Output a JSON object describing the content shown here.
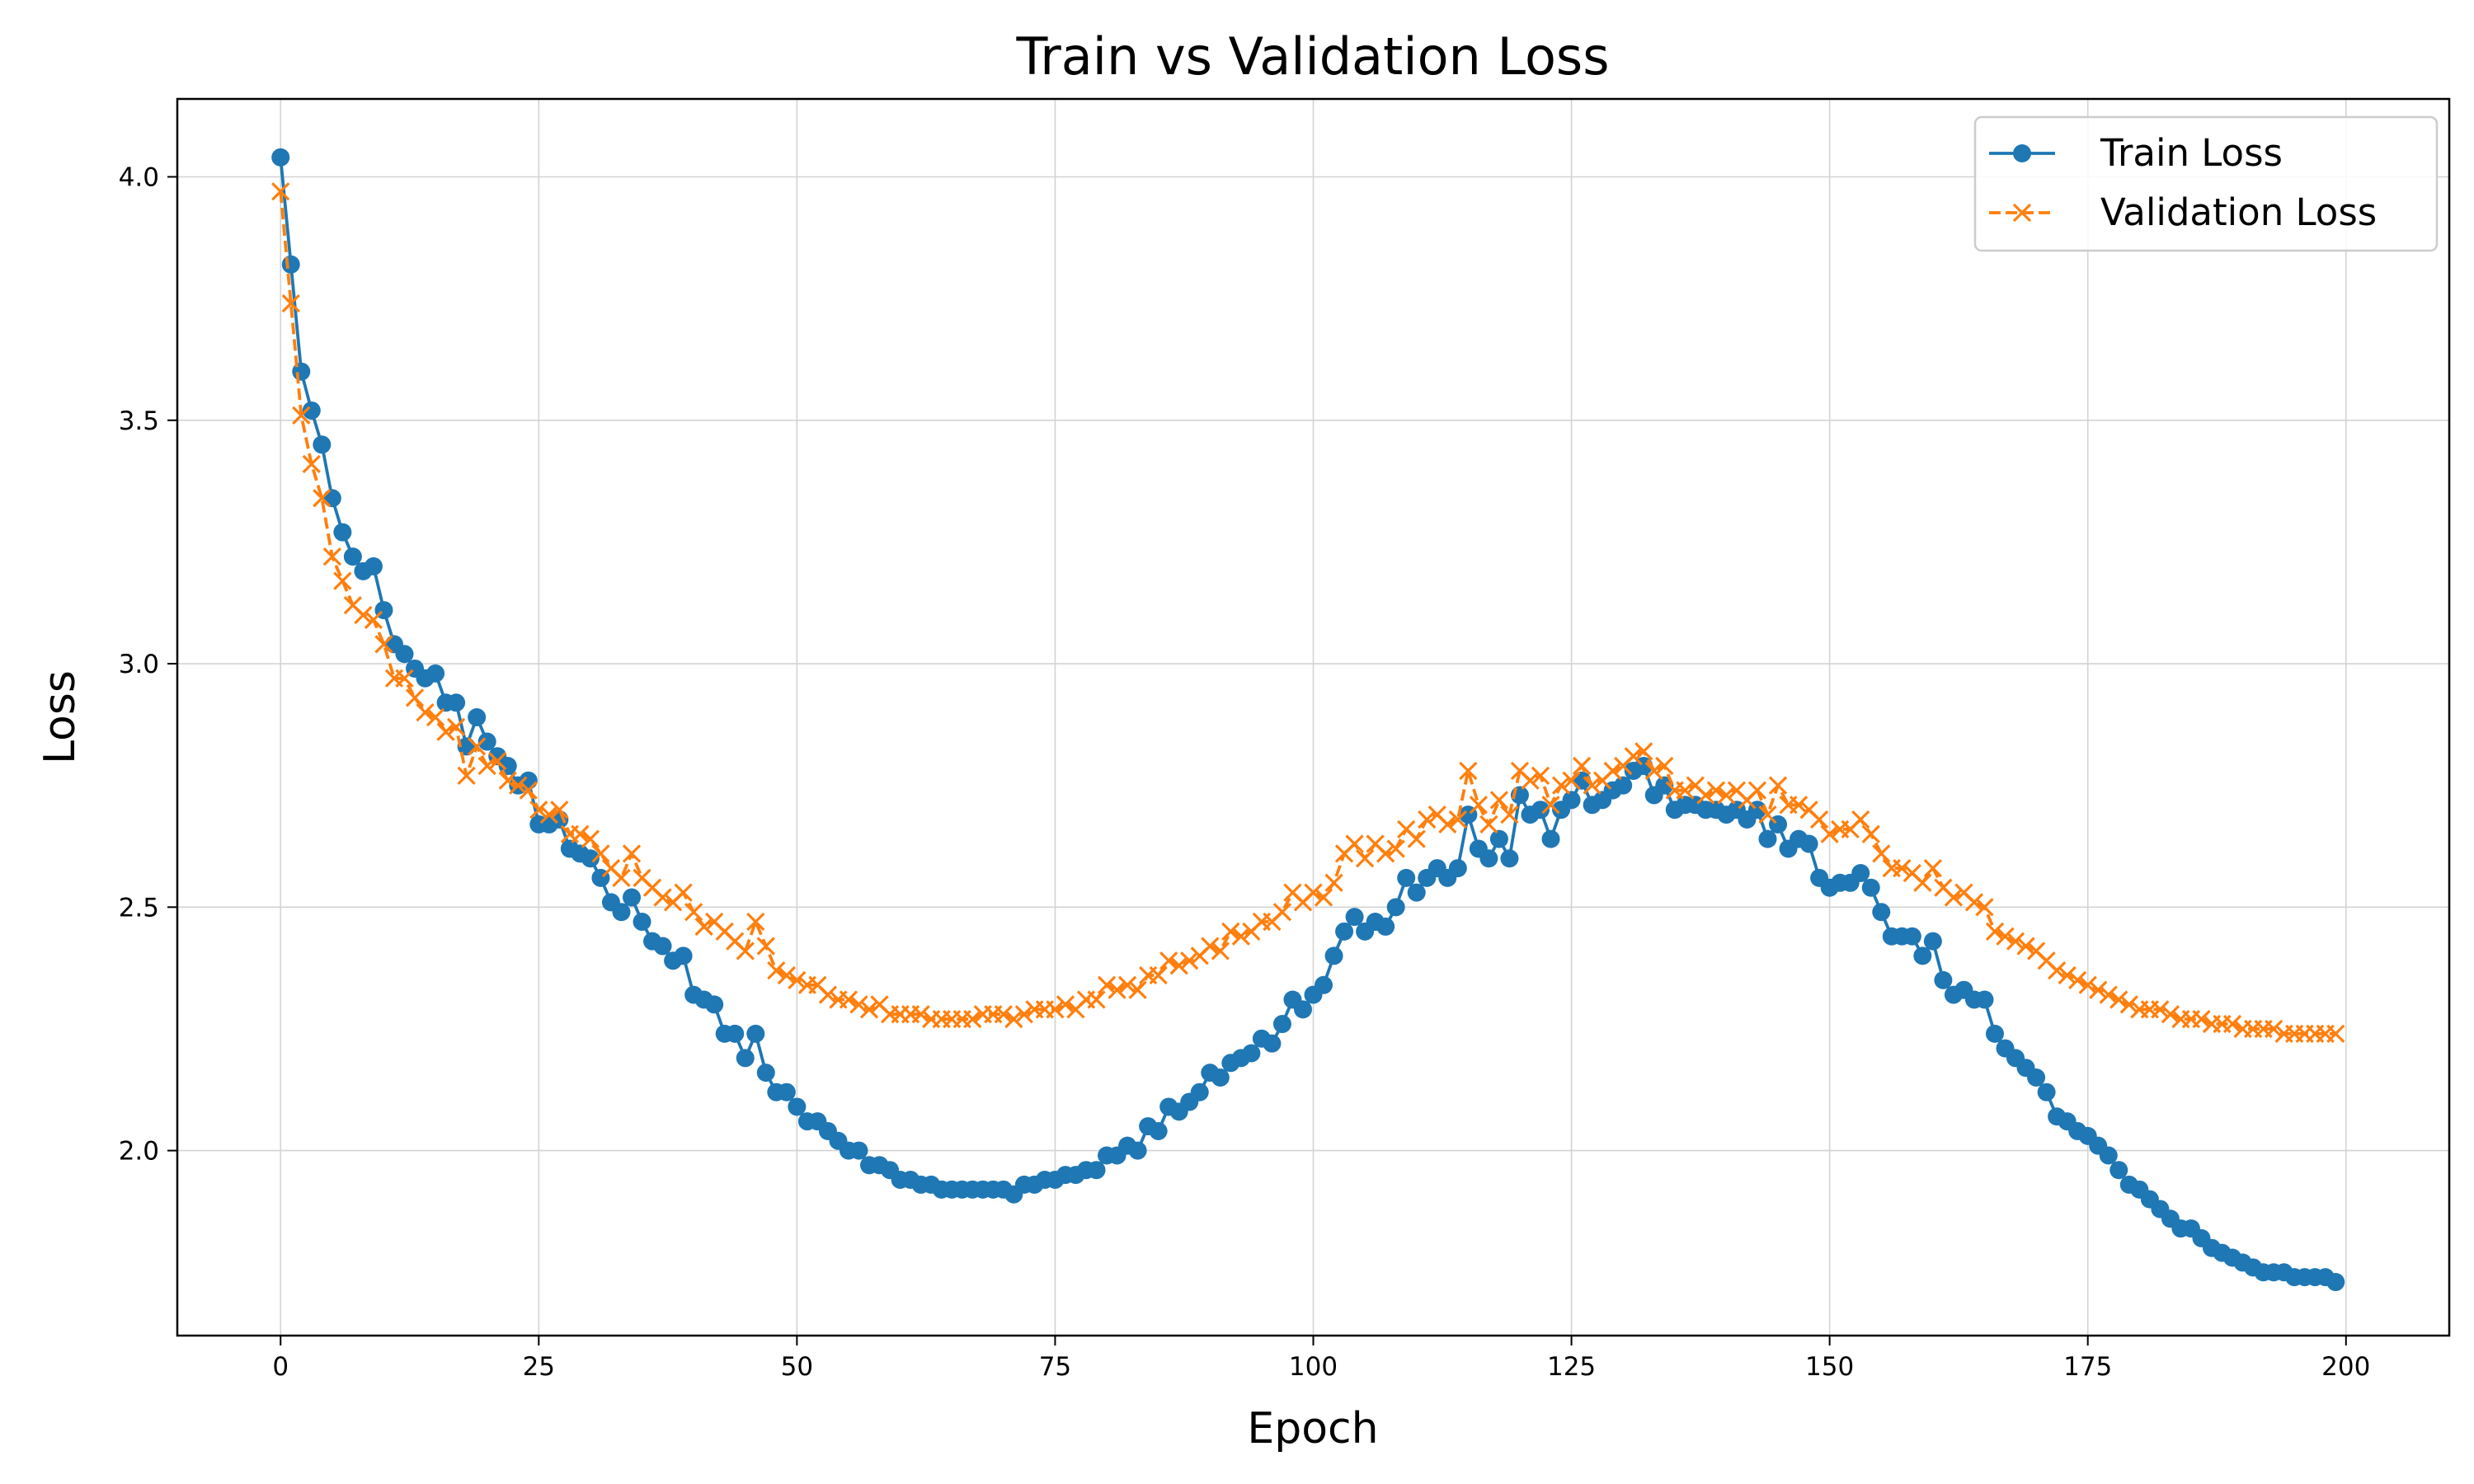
{
  "colors": {
    "train": "#1f77b4",
    "validation": "#ff7f0e",
    "grid": "#d3d3d3"
  },
  "chart_data": {
    "type": "line",
    "title": "Train vs Validation Loss",
    "xlabel": "Epoch",
    "ylabel": "Loss",
    "xlim": [
      -10,
      210
    ],
    "ylim": [
      1.62,
      4.16
    ],
    "xticks": [
      0,
      25,
      50,
      75,
      100,
      125,
      150,
      175,
      200
    ],
    "yticks": [
      2.0,
      2.5,
      3.0,
      3.5,
      4.0
    ],
    "ytick_labels": [
      "2.0",
      "2.5",
      "3.0",
      "3.5",
      "4.0"
    ],
    "grid": true,
    "legend_position": "top-right",
    "series": [
      {
        "name": "Train Loss",
        "style": "solid",
        "marker": "circle",
        "color": "#1f77b4",
        "x": [
          0,
          1,
          2,
          3,
          4,
          5,
          6,
          7,
          8,
          9,
          10,
          11,
          12,
          13,
          14,
          15,
          16,
          17,
          18,
          19,
          20,
          21,
          22,
          23,
          24,
          25,
          26,
          27,
          28,
          29,
          30,
          31,
          32,
          33,
          34,
          35,
          36,
          37,
          38,
          39,
          40,
          41,
          42,
          43,
          44,
          45,
          46,
          47,
          48,
          49,
          50,
          51,
          52,
          53,
          54,
          55,
          56,
          57,
          58,
          59,
          60,
          61,
          62,
          63,
          64,
          65,
          66,
          67,
          68,
          69,
          70,
          71,
          72,
          73,
          74,
          75,
          76,
          77,
          78,
          79,
          80,
          81,
          82,
          83,
          84,
          85,
          86,
          87,
          88,
          89,
          90,
          91,
          92,
          93,
          94,
          95,
          96,
          97,
          98,
          99,
          100,
          101,
          102,
          103,
          104,
          105,
          106,
          107,
          108,
          109,
          110,
          111,
          112,
          113,
          114,
          115,
          116,
          117,
          118,
          119,
          120,
          121,
          122,
          123,
          124,
          125,
          126,
          127,
          128,
          129,
          130,
          131,
          132,
          133,
          134,
          135,
          136,
          137,
          138,
          139,
          140,
          141,
          142,
          143,
          144,
          145,
          146,
          147,
          148,
          149,
          150,
          151,
          152,
          153,
          154,
          155,
          156,
          157,
          158,
          159,
          160,
          161,
          162,
          163,
          164,
          165,
          166,
          167,
          168,
          169,
          170,
          171,
          172,
          173,
          174,
          175,
          176,
          177,
          178,
          179,
          180,
          181,
          182,
          183,
          184,
          185,
          186,
          187,
          188,
          189,
          190,
          191,
          192,
          193,
          194,
          195,
          196,
          197,
          198,
          199
        ],
        "y": [
          4.04,
          3.82,
          3.6,
          3.52,
          3.45,
          3.34,
          3.27,
          3.22,
          3.19,
          3.2,
          3.11,
          3.04,
          3.02,
          2.99,
          2.97,
          2.98,
          2.92,
          2.92,
          2.83,
          2.89,
          2.84,
          2.81,
          2.79,
          2.75,
          2.76,
          2.67,
          2.67,
          2.68,
          2.62,
          2.61,
          2.6,
          2.56,
          2.51,
          2.49,
          2.52,
          2.47,
          2.43,
          2.42,
          2.39,
          2.4,
          2.32,
          2.31,
          2.3,
          2.24,
          2.24,
          2.19,
          2.24,
          2.16,
          2.12,
          2.12,
          2.09,
          2.06,
          2.06,
          2.04,
          2.02,
          2.0,
          2.0,
          1.97,
          1.97,
          1.96,
          1.94,
          1.94,
          1.93,
          1.93,
          1.92,
          1.92,
          1.92,
          1.92,
          1.92,
          1.92,
          1.92,
          1.91,
          1.93,
          1.93,
          1.94,
          1.94,
          1.95,
          1.95,
          1.96,
          1.96,
          1.99,
          1.99,
          2.01,
          2.0,
          2.05,
          2.04,
          2.09,
          2.08,
          2.1,
          2.12,
          2.16,
          2.15,
          2.18,
          2.19,
          2.2,
          2.23,
          2.22,
          2.26,
          2.31,
          2.29,
          2.32,
          2.34,
          2.4,
          2.45,
          2.48,
          2.45,
          2.47,
          2.46,
          2.5,
          2.56,
          2.53,
          2.56,
          2.58,
          2.56,
          2.58,
          2.69,
          2.62,
          2.6,
          2.64,
          2.6,
          2.73,
          2.69,
          2.7,
          2.64,
          2.7,
          2.72,
          2.76,
          2.71,
          2.72,
          2.74,
          2.75,
          2.78,
          2.79,
          2.73,
          2.75,
          2.7,
          2.71,
          2.71,
          2.7,
          2.7,
          2.69,
          2.7,
          2.68,
          2.7,
          2.64,
          2.67,
          2.62,
          2.64,
          2.63,
          2.56,
          2.54,
          2.55,
          2.55,
          2.57,
          2.54,
          2.49,
          2.44,
          2.44,
          2.44,
          2.4,
          2.43,
          2.35,
          2.32,
          2.33,
          2.31,
          2.31,
          2.24,
          2.21,
          2.19,
          2.17,
          2.15,
          2.12,
          2.07,
          2.06,
          2.04,
          2.03,
          2.01,
          1.99,
          1.96,
          1.93,
          1.92,
          1.9,
          1.88,
          1.86,
          1.84,
          1.84,
          1.82,
          1.8,
          1.79,
          1.78,
          1.77,
          1.76,
          1.75,
          1.75,
          1.75,
          1.74,
          1.74,
          1.74,
          1.74,
          1.73
        ]
      },
      {
        "name": "Validation Loss",
        "style": "dashed",
        "marker": "x",
        "color": "#ff7f0e",
        "x": [
          0,
          1,
          2,
          3,
          4,
          5,
          6,
          7,
          8,
          9,
          10,
          11,
          12,
          13,
          14,
          15,
          16,
          17,
          18,
          19,
          20,
          21,
          22,
          23,
          24,
          25,
          26,
          27,
          28,
          29,
          30,
          31,
          32,
          33,
          34,
          35,
          36,
          37,
          38,
          39,
          40,
          41,
          42,
          43,
          44,
          45,
          46,
          47,
          48,
          49,
          50,
          51,
          52,
          53,
          54,
          55,
          56,
          57,
          58,
          59,
          60,
          61,
          62,
          63,
          64,
          65,
          66,
          67,
          68,
          69,
          70,
          71,
          72,
          73,
          74,
          75,
          76,
          77,
          78,
          79,
          80,
          81,
          82,
          83,
          84,
          85,
          86,
          87,
          88,
          89,
          90,
          91,
          92,
          93,
          94,
          95,
          96,
          97,
          98,
          99,
          100,
          101,
          102,
          103,
          104,
          105,
          106,
          107,
          108,
          109,
          110,
          111,
          112,
          113,
          114,
          115,
          116,
          117,
          118,
          119,
          120,
          121,
          122,
          123,
          124,
          125,
          126,
          127,
          128,
          129,
          130,
          131,
          132,
          133,
          134,
          135,
          136,
          137,
          138,
          139,
          140,
          141,
          142,
          143,
          144,
          145,
          146,
          147,
          148,
          149,
          150,
          151,
          152,
          153,
          154,
          155,
          156,
          157,
          158,
          159,
          160,
          161,
          162,
          163,
          164,
          165,
          166,
          167,
          168,
          169,
          170,
          171,
          172,
          173,
          174,
          175,
          176,
          177,
          178,
          179,
          180,
          181,
          182,
          183,
          184,
          185,
          186,
          187,
          188,
          189,
          190,
          191,
          192,
          193,
          194,
          195,
          196,
          197,
          198,
          199
        ],
        "y": [
          3.97,
          3.74,
          3.51,
          3.41,
          3.34,
          3.22,
          3.17,
          3.12,
          3.1,
          3.09,
          3.04,
          2.97,
          2.97,
          2.93,
          2.9,
          2.89,
          2.86,
          2.87,
          2.77,
          2.83,
          2.79,
          2.8,
          2.76,
          2.75,
          2.74,
          2.7,
          2.69,
          2.7,
          2.65,
          2.65,
          2.64,
          2.61,
          2.58,
          2.56,
          2.61,
          2.56,
          2.54,
          2.52,
          2.51,
          2.53,
          2.49,
          2.46,
          2.47,
          2.45,
          2.43,
          2.41,
          2.47,
          2.42,
          2.37,
          2.36,
          2.35,
          2.34,
          2.34,
          2.32,
          2.31,
          2.31,
          2.3,
          2.29,
          2.3,
          2.28,
          2.28,
          2.28,
          2.28,
          2.27,
          2.27,
          2.27,
          2.27,
          2.27,
          2.28,
          2.28,
          2.28,
          2.27,
          2.28,
          2.29,
          2.29,
          2.29,
          2.3,
          2.29,
          2.31,
          2.31,
          2.34,
          2.33,
          2.34,
          2.33,
          2.36,
          2.36,
          2.39,
          2.38,
          2.39,
          2.4,
          2.42,
          2.41,
          2.45,
          2.44,
          2.45,
          2.47,
          2.47,
          2.49,
          2.53,
          2.51,
          2.53,
          2.52,
          2.55,
          2.61,
          2.63,
          2.6,
          2.63,
          2.61,
          2.62,
          2.66,
          2.64,
          2.68,
          2.69,
          2.67,
          2.68,
          2.78,
          2.71,
          2.67,
          2.72,
          2.69,
          2.78,
          2.76,
          2.77,
          2.71,
          2.75,
          2.76,
          2.79,
          2.75,
          2.76,
          2.78,
          2.79,
          2.81,
          2.82,
          2.78,
          2.79,
          2.74,
          2.74,
          2.75,
          2.73,
          2.74,
          2.73,
          2.74,
          2.72,
          2.74,
          2.69,
          2.75,
          2.71,
          2.71,
          2.7,
          2.68,
          2.65,
          2.66,
          2.66,
          2.68,
          2.65,
          2.61,
          2.58,
          2.58,
          2.57,
          2.55,
          2.58,
          2.54,
          2.52,
          2.53,
          2.51,
          2.5,
          2.45,
          2.44,
          2.43,
          2.42,
          2.41,
          2.39,
          2.37,
          2.36,
          2.35,
          2.34,
          2.33,
          2.32,
          2.31,
          2.3,
          2.29,
          2.29,
          2.29,
          2.28,
          2.27,
          2.27,
          2.27,
          2.26,
          2.26,
          2.26,
          2.25,
          2.25,
          2.25,
          2.25,
          2.24,
          2.24,
          2.24,
          2.24,
          2.24,
          2.24
        ]
      }
    ]
  }
}
